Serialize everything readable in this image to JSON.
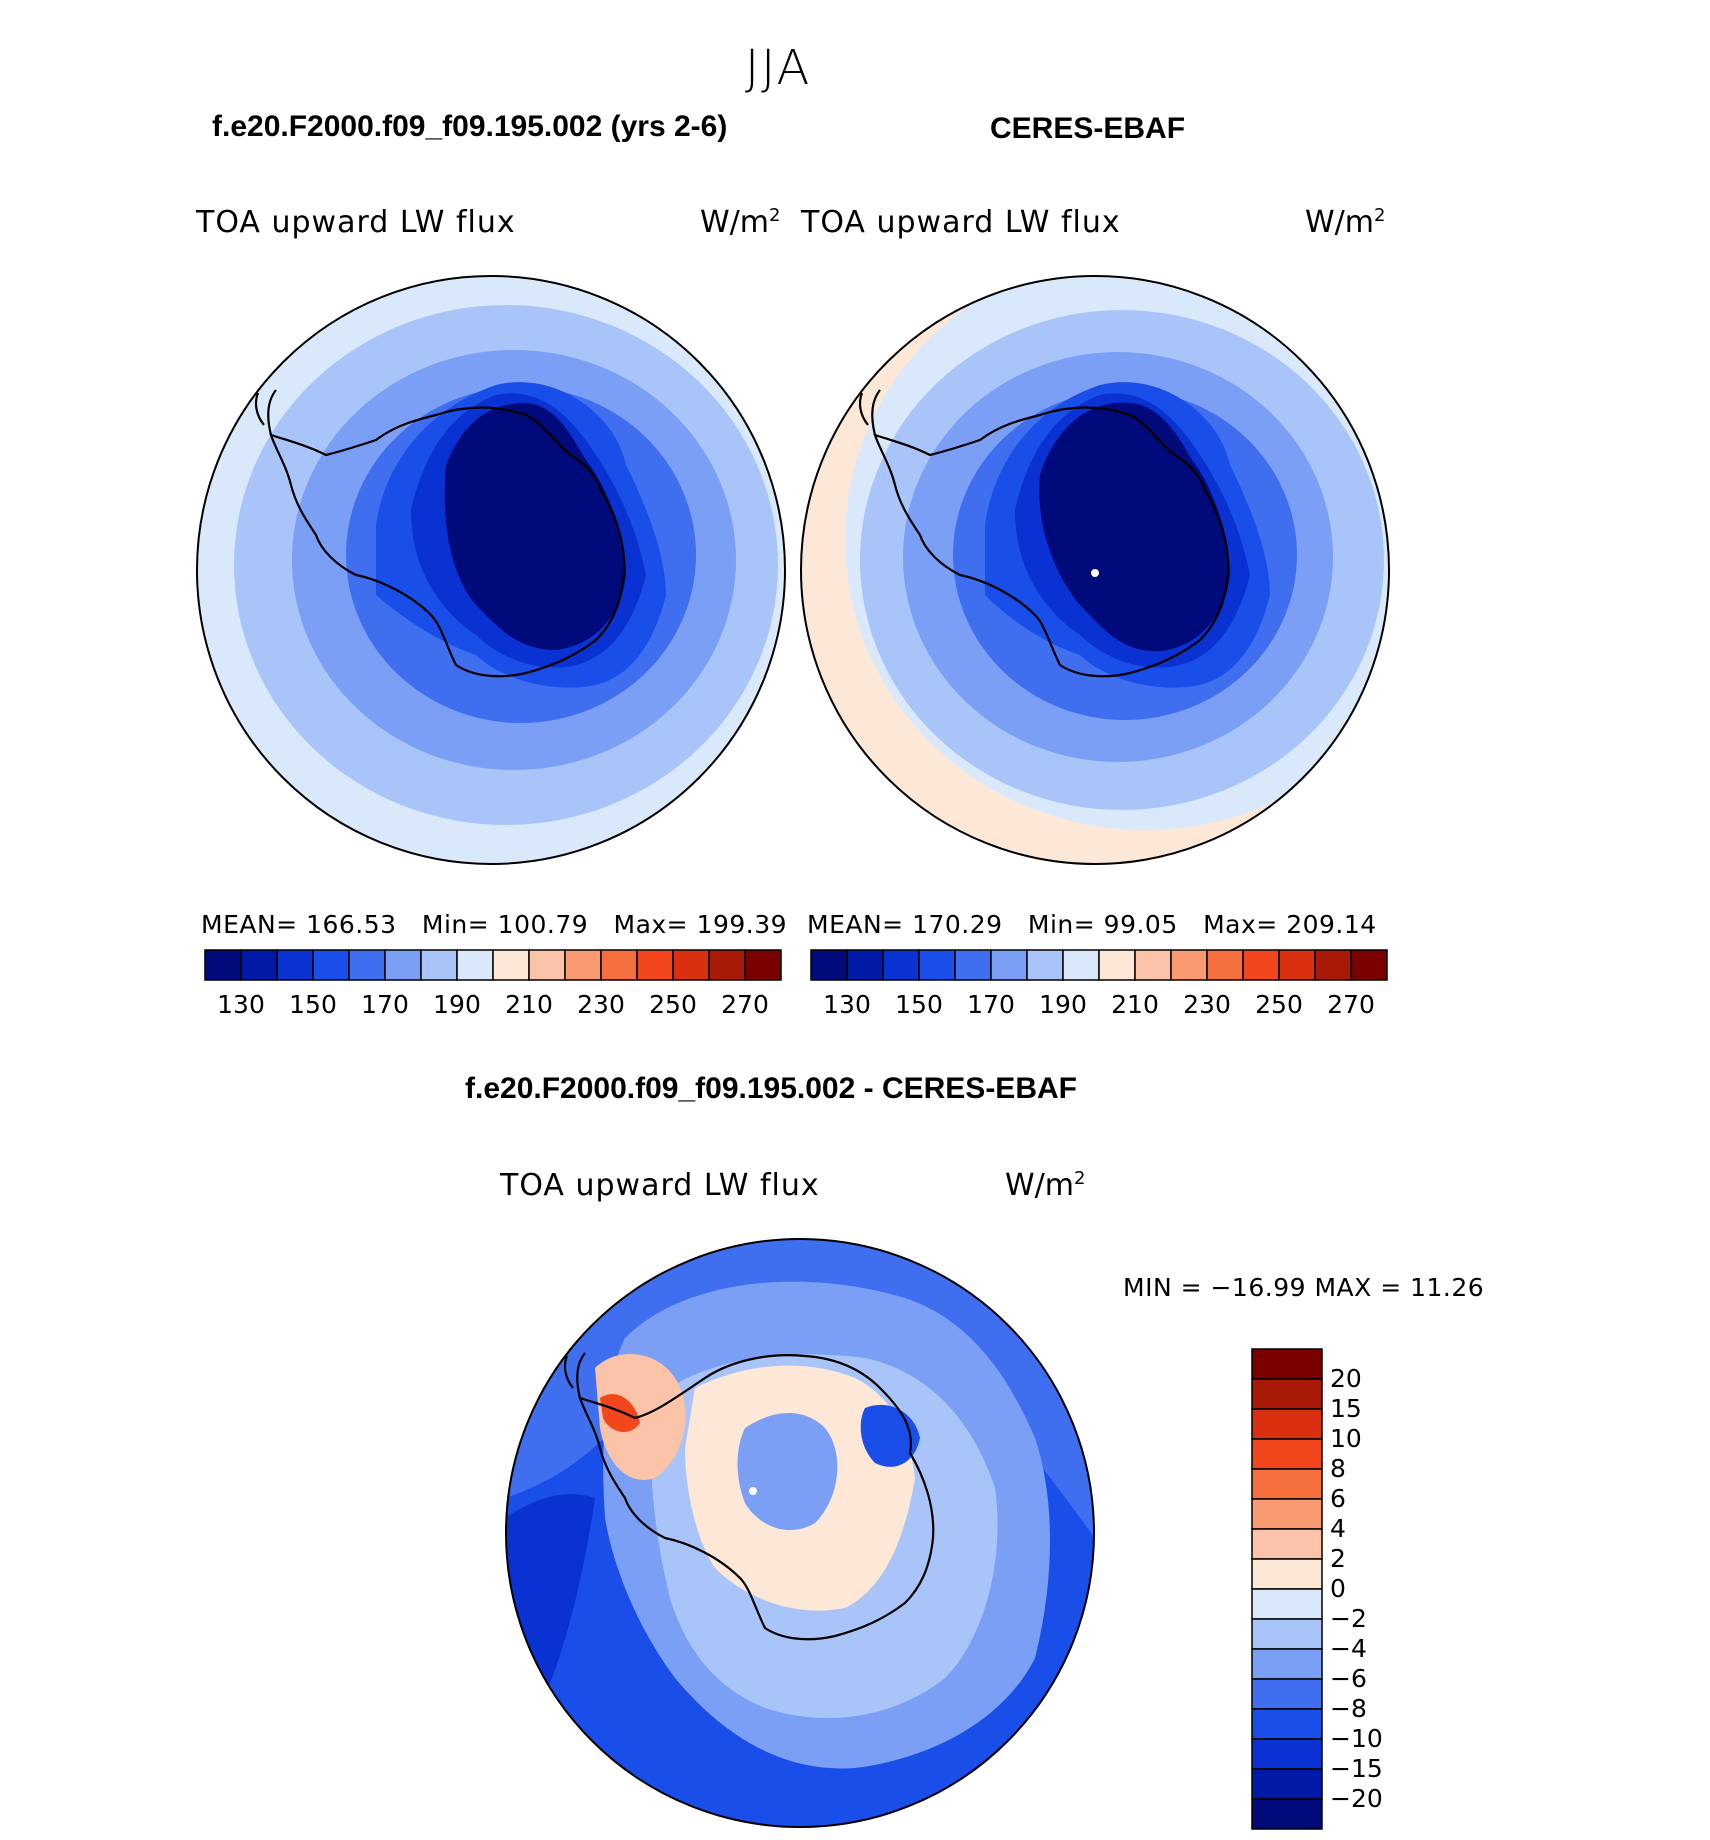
{
  "season": "JJA",
  "left_panel": {
    "case": "f.e20.F2000.f09_f09.195.002 (yrs 2-6)",
    "variable": "TOA upward LW flux",
    "units_base": "W/m",
    "units_exp": "2",
    "stats": {
      "mean_label": "MEAN=",
      "mean": "166.53",
      "min_label": "Min=",
      "min": "100.79",
      "max_label": "Max=",
      "max": "199.39"
    }
  },
  "right_panel": {
    "case": "CERES-EBAF",
    "variable": "TOA upward LW flux",
    "units_base": "W/m",
    "units_exp": "2",
    "stats": {
      "mean_label": "MEAN=",
      "mean": "170.29",
      "min_label": "Min=",
      "min": "99.05",
      "max_label": "Max=",
      "max": "209.14"
    }
  },
  "colorbar_main": {
    "ticks": [
      "130",
      "150",
      "170",
      "190",
      "210",
      "230",
      "250",
      "270"
    ],
    "colors": [
      "#000a7a",
      "#0019a6",
      "#0a32d2",
      "#1a4ee8",
      "#3f6fef",
      "#7a9ff5",
      "#a9c4f9",
      "#d9e9fb",
      "#fde8d8",
      "#fbc4a8",
      "#f99a70",
      "#f6703f",
      "#f2471c",
      "#d93010",
      "#a81a06",
      "#7a0000"
    ]
  },
  "diff_panel": {
    "title": "f.e20.F2000.f09_f09.195.002 - CERES-EBAF",
    "variable": "TOA upward LW flux",
    "units_base": "W/m",
    "units_exp": "2",
    "minmax": "MIN = −16.99 MAX =   11.26"
  },
  "colorbar_diff": {
    "labels": [
      "20",
      "15",
      "10",
      "8",
      "6",
      "4",
      "2",
      "0",
      "−2",
      "−4",
      "−6",
      "−8",
      "−10",
      "−15",
      "−20"
    ],
    "colors": [
      "#7a0000",
      "#a81a06",
      "#d93010",
      "#f2471c",
      "#f6703f",
      "#f99a70",
      "#fbc4a8",
      "#fde8d8",
      "#d9e9fb",
      "#a9c4f9",
      "#7a9ff5",
      "#3f6fef",
      "#1a4ee8",
      "#0a32d2",
      "#0019a6",
      "#000a7a"
    ]
  },
  "colors": {
    "ocean_outer": "#d9e9fb",
    "ocean_mid": "#a9c4f9",
    "ocean_inner": "#7a9ff5",
    "shelf": "#3f6fef",
    "coast": "#1a4ee8",
    "plateau": "#000a7a",
    "warm_band": "#fde8d8",
    "coastline": "#000000"
  }
}
